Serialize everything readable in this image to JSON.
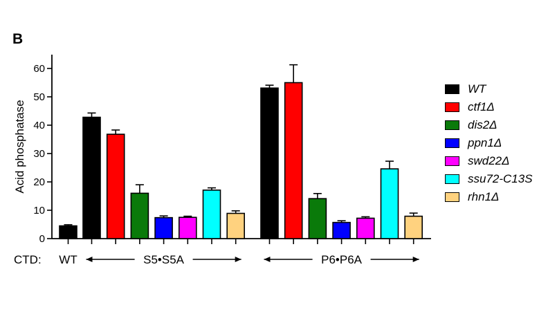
{
  "panel_label": "B",
  "chart_data": {
    "type": "bar",
    "ylabel": "Acid phosphatase",
    "ylim": [
      0,
      60
    ],
    "yticks": [
      0,
      10,
      20,
      30,
      40,
      50,
      60
    ],
    "grid": false,
    "legend_position": "right",
    "ctd_label": "CTD:",
    "groups": [
      {
        "label": "WT",
        "bars": [
          {
            "series": "WT",
            "value": 4.5,
            "error": 0.4
          }
        ]
      },
      {
        "label": "S5•S5A",
        "bars": [
          {
            "series": "WT",
            "value": 42.8,
            "error": 1.5
          },
          {
            "series": "ctf1Δ",
            "value": 36.8,
            "error": 1.5
          },
          {
            "series": "dis2Δ",
            "value": 16.0,
            "error": 3.0
          },
          {
            "series": "ppn1Δ",
            "value": 7.4,
            "error": 0.6
          },
          {
            "series": "swd22Δ",
            "value": 7.5,
            "error": 0.4
          },
          {
            "series": "ssu72-C13S",
            "value": 17.1,
            "error": 0.8
          },
          {
            "series": "rhn1Δ",
            "value": 8.9,
            "error": 0.9
          }
        ]
      },
      {
        "label": "P6•P6A",
        "bars": [
          {
            "series": "WT",
            "value": 53.1,
            "error": 1.0
          },
          {
            "series": "ctf1Δ",
            "value": 55.0,
            "error": 6.3
          },
          {
            "series": "dis2Δ",
            "value": 14.1,
            "error": 1.8
          },
          {
            "series": "ppn1Δ",
            "value": 5.7,
            "error": 0.6
          },
          {
            "series": "swd22Δ",
            "value": 7.2,
            "error": 0.5
          },
          {
            "series": "ssu72-C13S",
            "value": 24.6,
            "error": 2.7
          },
          {
            "series": "rhn1Δ",
            "value": 7.9,
            "error": 1.1
          }
        ]
      }
    ],
    "series": [
      {
        "name": "WT",
        "color": "#000000"
      },
      {
        "name": "ctf1Δ",
        "color": "#ff0000"
      },
      {
        "name": "dis2Δ",
        "color": "#0a7a0a"
      },
      {
        "name": "ppn1Δ",
        "color": "#0000ff"
      },
      {
        "name": "swd22Δ",
        "color": "#ff00ff"
      },
      {
        "name": "ssu72-C13S",
        "color": "#00ffff"
      },
      {
        "name": "rhn1Δ",
        "color": "#ffd27f"
      }
    ]
  }
}
